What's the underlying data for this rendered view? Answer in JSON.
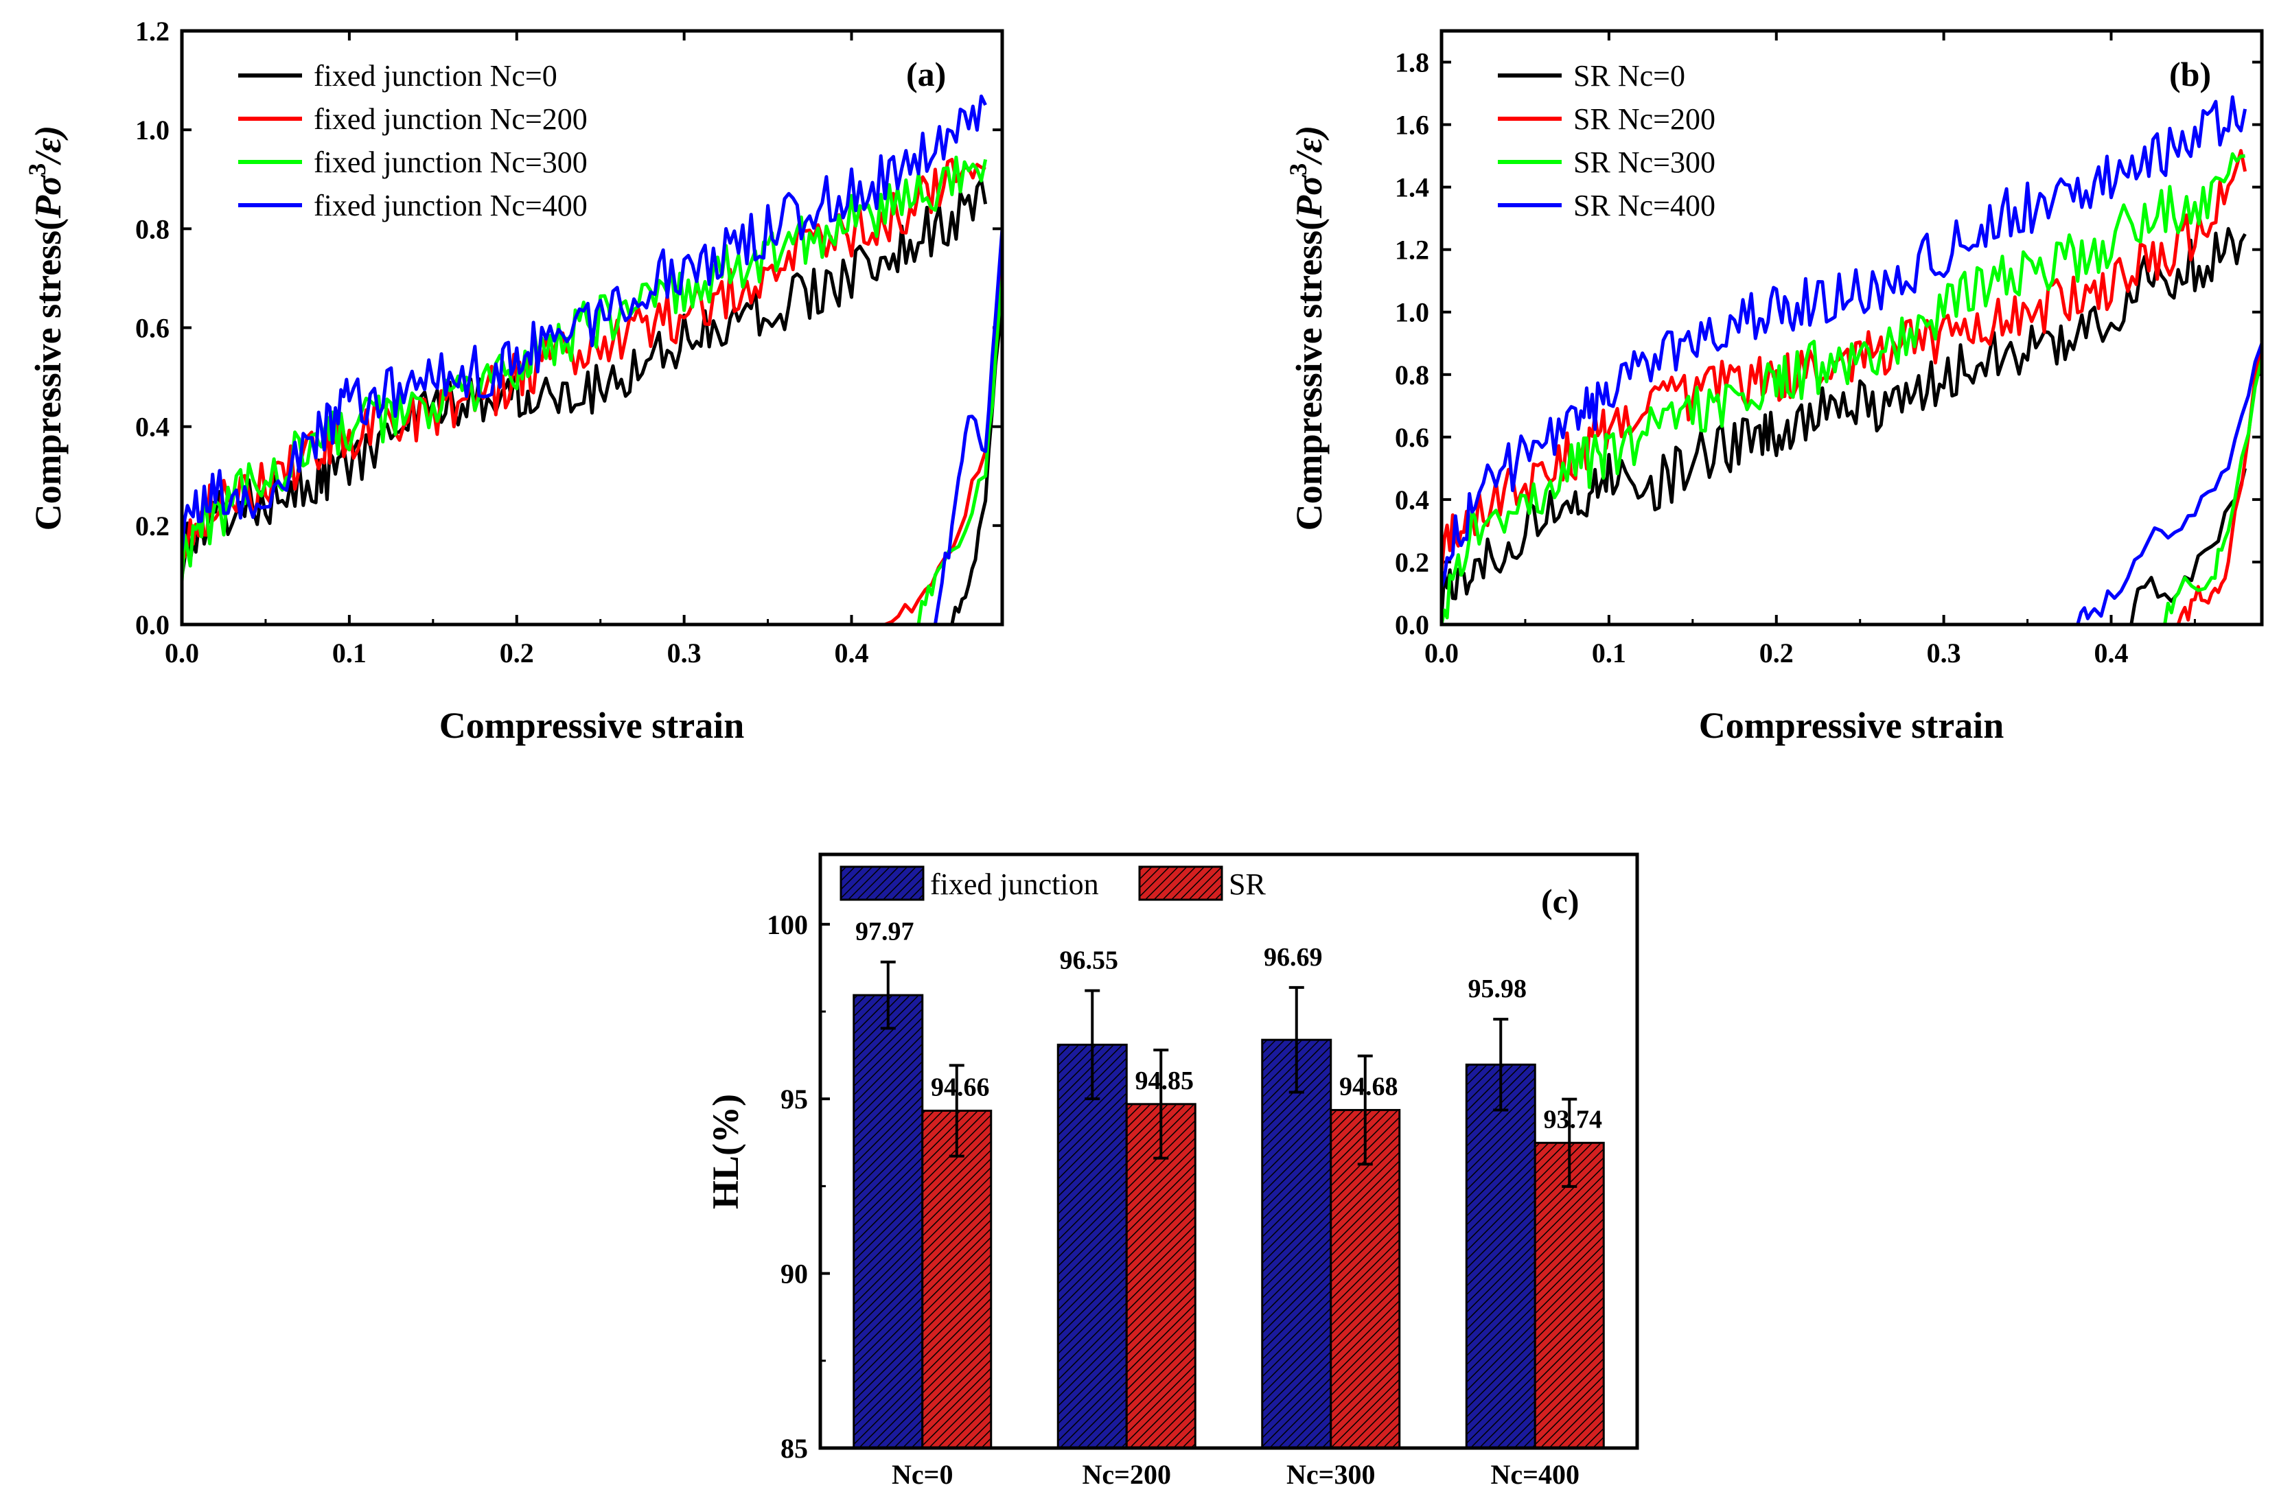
{
  "chart_data": [
    {
      "panel": "(a)",
      "type": "line",
      "xlabel": "Compressive strain",
      "ylabel": "Compressive stress(Pσ³/ε)",
      "ylabel_parts": [
        "Compressive stress(",
        "Pσ",
        "3",
        "/ε)"
      ],
      "xlim": [
        0,
        0.49
      ],
      "ylim": [
        0,
        1.2
      ],
      "xticks": [
        "0.0",
        "0.1",
        "0.2",
        "0.3",
        "0.4"
      ],
      "xtick_values": [
        0,
        0.1,
        0.2,
        0.3,
        0.4
      ],
      "yticks": [
        "0.0",
        "0.2",
        "0.4",
        "0.6",
        "0.8",
        "1.0",
        "1.2"
      ],
      "ytick_values": [
        0,
        0.2,
        0.4,
        0.6,
        0.8,
        1.0,
        1.2
      ],
      "legend_position": "top-left",
      "series": [
        {
          "name": "fixed junction Nc=0",
          "color": "#000000",
          "loading": {
            "x": [
              0,
              0.02,
              0.05,
              0.08,
              0.1,
              0.13,
              0.16,
              0.19,
              0.21,
              0.24,
              0.27,
              0.3,
              0.33,
              0.36,
              0.39,
              0.42,
              0.45,
              0.48
            ],
            "y": [
              0.15,
              0.22,
              0.25,
              0.3,
              0.32,
              0.4,
              0.44,
              0.46,
              0.48,
              0.47,
              0.52,
              0.58,
              0.62,
              0.65,
              0.68,
              0.75,
              0.8,
              0.85
            ]
          },
          "unloading": {
            "x": [
              0.46,
              0.47,
              0.48,
              0.49
            ],
            "y": [
              0,
              0.08,
              0.25,
              0.7
            ]
          }
        },
        {
          "name": "fixed junction Nc=200",
          "color": "#ff0000",
          "loading": {
            "x": [
              0,
              0.02,
              0.05,
              0.08,
              0.1,
              0.13,
              0.16,
              0.19,
              0.21,
              0.24,
              0.27,
              0.3,
              0.33,
              0.36,
              0.39,
              0.42,
              0.45,
              0.48
            ],
            "y": [
              0.18,
              0.25,
              0.28,
              0.35,
              0.38,
              0.41,
              0.44,
              0.48,
              0.52,
              0.56,
              0.6,
              0.62,
              0.68,
              0.74,
              0.78,
              0.82,
              0.88,
              0.92
            ]
          },
          "unloading": {
            "x": [
              0.42,
              0.44,
              0.46,
              0.48,
              0.49
            ],
            "y": [
              0,
              0.05,
              0.15,
              0.35,
              0.75
            ]
          }
        },
        {
          "name": "fixed junction Nc=300",
          "color": "#00ff00",
          "loading": {
            "x": [
              0,
              0.02,
              0.05,
              0.08,
              0.1,
              0.13,
              0.16,
              0.19,
              0.21,
              0.24,
              0.27,
              0.3,
              0.33,
              0.36,
              0.39,
              0.42,
              0.45,
              0.48
            ],
            "y": [
              0.14,
              0.22,
              0.3,
              0.36,
              0.4,
              0.42,
              0.45,
              0.5,
              0.55,
              0.6,
              0.64,
              0.68,
              0.72,
              0.76,
              0.8,
              0.84,
              0.88,
              0.94
            ]
          },
          "unloading": {
            "x": [
              0.44,
              0.45,
              0.46,
              0.48,
              0.49
            ],
            "y": [
              0,
              0.1,
              0.15,
              0.3,
              0.7
            ]
          }
        },
        {
          "name": "fixed junction Nc=400",
          "color": "#0000ff",
          "loading": {
            "x": [
              0,
              0.02,
              0.05,
              0.08,
              0.1,
              0.13,
              0.16,
              0.19,
              0.21,
              0.24,
              0.27,
              0.3,
              0.33,
              0.36,
              0.39,
              0.42,
              0.45,
              0.48
            ],
            "y": [
              0.2,
              0.26,
              0.24,
              0.38,
              0.45,
              0.47,
              0.5,
              0.52,
              0.56,
              0.6,
              0.68,
              0.72,
              0.76,
              0.82,
              0.86,
              0.9,
              0.97,
              1.05
            ]
          },
          "unloading": {
            "x": [
              0.45,
              0.46,
              0.47,
              0.48,
              0.49
            ],
            "y": [
              0,
              0.2,
              0.42,
              0.35,
              0.8
            ]
          }
        }
      ]
    },
    {
      "panel": "(b)",
      "type": "line",
      "xlabel": "Compressive strain",
      "ylabel": "Compressive stress(Pσ³/ε)",
      "ylabel_parts": [
        "Compressive stress(",
        "Pσ",
        "3",
        "/ε)"
      ],
      "xlim": [
        0,
        0.49
      ],
      "ylim": [
        0,
        1.9
      ],
      "xticks": [
        "0.0",
        "0.1",
        "0.2",
        "0.3",
        "0.4"
      ],
      "xtick_values": [
        0,
        0.1,
        0.2,
        0.3,
        0.4
      ],
      "yticks": [
        "0.0",
        "0.2",
        "0.4",
        "0.6",
        "0.8",
        "1.0",
        "1.2",
        "1.4",
        "1.6",
        "1.8"
      ],
      "ytick_values": [
        0,
        0.2,
        0.4,
        0.6,
        0.8,
        1.0,
        1.2,
        1.4,
        1.6,
        1.8
      ],
      "legend_position": "top-left",
      "series": [
        {
          "name": "SR Nc=0",
          "color": "#000000",
          "loading": {
            "x": [
              0,
              0.02,
              0.05,
              0.08,
              0.1,
              0.13,
              0.16,
              0.19,
              0.21,
              0.24,
              0.27,
              0.3,
              0.33,
              0.36,
              0.39,
              0.42,
              0.45,
              0.48
            ],
            "y": [
              0.1,
              0.2,
              0.3,
              0.4,
              0.48,
              0.45,
              0.55,
              0.6,
              0.65,
              0.7,
              0.7,
              0.8,
              0.85,
              0.9,
              0.95,
              1.1,
              1.15,
              1.25
            ]
          },
          "unloading": {
            "x": [
              0.41,
              0.42,
              0.44,
              0.46,
              0.48
            ],
            "y": [
              0,
              0.12,
              0.1,
              0.25,
              0.5
            ]
          }
        },
        {
          "name": "SR Nc=200",
          "color": "#ff0000",
          "loading": {
            "x": [
              0,
              0.02,
              0.05,
              0.08,
              0.1,
              0.13,
              0.16,
              0.19,
              0.21,
              0.24,
              0.27,
              0.3,
              0.33,
              0.36,
              0.39,
              0.42,
              0.45,
              0.48
            ],
            "y": [
              0.25,
              0.35,
              0.45,
              0.55,
              0.65,
              0.7,
              0.75,
              0.78,
              0.8,
              0.85,
              0.88,
              0.92,
              0.98,
              1.02,
              1.05,
              1.15,
              1.25,
              1.45
            ]
          },
          "unloading": {
            "x": [
              0.44,
              0.45,
              0.46,
              0.47,
              0.49
            ],
            "y": [
              0,
              0.08,
              0.1,
              0.2,
              0.9
            ]
          }
        },
        {
          "name": "SR Nc=300",
          "color": "#00ff00",
          "loading": {
            "x": [
              0,
              0.02,
              0.05,
              0.08,
              0.1,
              0.13,
              0.16,
              0.19,
              0.21,
              0.24,
              0.27,
              0.3,
              0.33,
              0.36,
              0.39,
              0.42,
              0.45,
              0.48
            ],
            "y": [
              0.05,
              0.3,
              0.4,
              0.5,
              0.55,
              0.62,
              0.7,
              0.75,
              0.8,
              0.85,
              0.9,
              1.0,
              1.1,
              1.15,
              1.2,
              1.3,
              1.35,
              1.5
            ]
          },
          "unloading": {
            "x": [
              0.43,
              0.44,
              0.46,
              0.47,
              0.49
            ],
            "y": [
              0,
              0.1,
              0.15,
              0.3,
              0.85
            ]
          }
        },
        {
          "name": "SR Nc=400",
          "color": "#0000ff",
          "loading": {
            "x": [
              0,
              0.02,
              0.05,
              0.08,
              0.1,
              0.13,
              0.16,
              0.19,
              0.21,
              0.24,
              0.27,
              0.3,
              0.33,
              0.36,
              0.39,
              0.42,
              0.45,
              0.48
            ],
            "y": [
              0.2,
              0.4,
              0.55,
              0.65,
              0.75,
              0.85,
              0.95,
              1.0,
              1.02,
              1.05,
              1.1,
              1.2,
              1.3,
              1.35,
              1.4,
              1.5,
              1.55,
              1.65
            ]
          },
          "unloading": {
            "x": [
              0.38,
              0.39,
              0.41,
              0.43,
              0.45,
              0.47,
              0.49
            ],
            "y": [
              0,
              0.05,
              0.15,
              0.3,
              0.35,
              0.5,
              0.9
            ]
          }
        }
      ]
    },
    {
      "panel": "(c)",
      "type": "bar",
      "ylabel": "HL(%)",
      "ylim": [
        85,
        102
      ],
      "yticks": [
        "85",
        "90",
        "95",
        "100"
      ],
      "ytick_values": [
        85,
        90,
        95,
        100
      ],
      "categories": [
        "Nc=0",
        "Nc=200",
        "Nc=300",
        "Nc=400"
      ],
      "legend_position": "top",
      "series": [
        {
          "name": "fixed junction",
          "color": "#1a1a9c",
          "values": [
            97.97,
            96.55,
            96.69,
            95.98
          ],
          "labels": [
            "97.97",
            "96.55",
            "96.69",
            "95.98"
          ],
          "errors": [
            0.95,
            1.55,
            1.5,
            1.3
          ]
        },
        {
          "name": "SR",
          "color": "#d42020",
          "values": [
            94.66,
            94.85,
            94.68,
            93.74
          ],
          "labels": [
            "94.66",
            "94.85",
            "94.68",
            "93.74"
          ],
          "errors": [
            1.3,
            1.55,
            1.55,
            1.25
          ]
        }
      ]
    }
  ]
}
